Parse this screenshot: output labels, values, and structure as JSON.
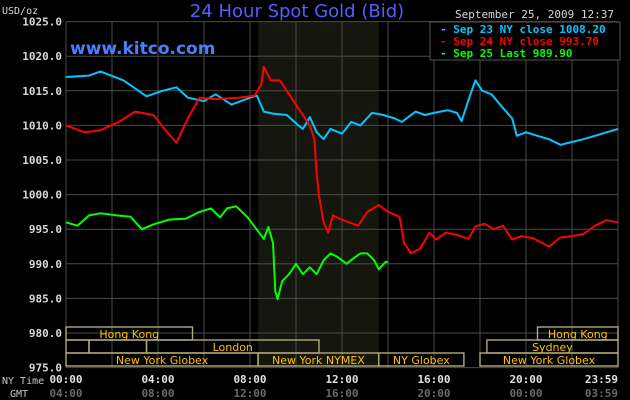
{
  "chart_data": {
    "type": "line",
    "title": "24 Hour Spot Gold (Bid)",
    "watermark": "www.kitco.com",
    "timestamp": "September 25, 2009 12:37",
    "ylabel": "USD/oz",
    "ylim": [
      975,
      1025
    ],
    "yticks": [
      "1025.0",
      "1020.0",
      "1015.0",
      "1010.0",
      "1005.0",
      "1000.0",
      "995.0",
      "990.0",
      "985.0",
      "980.0",
      "975.0"
    ],
    "xlim_hours": [
      0,
      24
    ],
    "x_row_label": "NY Time",
    "x_ticks_ny": [
      "00:00",
      "04:00",
      "08:00",
      "12:00",
      "16:00",
      "20:00",
      "23:59"
    ],
    "gmt_row_label": "GMT",
    "x_ticks_gmt": [
      "04:00",
      "08:00",
      "12:00",
      "16:00",
      "20:00",
      "00:00",
      "03:59"
    ],
    "grid": true,
    "legend_placement": "top-right",
    "highlight_hours": [
      8.35,
      13.6
    ],
    "series": [
      {
        "name": "Sep 23 NY close 1008.20",
        "color": "#00c8ff",
        "points": [
          [
            0,
            1017
          ],
          [
            1,
            1017.2
          ],
          [
            1.5,
            1017.8
          ],
          [
            2.5,
            1016.5
          ],
          [
            3.5,
            1014.2
          ],
          [
            4.2,
            1015
          ],
          [
            4.8,
            1015.5
          ],
          [
            5.3,
            1014
          ],
          [
            6,
            1013.5
          ],
          [
            6.5,
            1014.5
          ],
          [
            7.2,
            1013
          ],
          [
            8,
            1014
          ],
          [
            8.3,
            1014.3
          ],
          [
            8.6,
            1012
          ],
          [
            9,
            1011.7
          ],
          [
            9.6,
            1011.5
          ],
          [
            10.1,
            1010
          ],
          [
            10.3,
            1009.5
          ],
          [
            10.6,
            1011.2
          ],
          [
            10.9,
            1009
          ],
          [
            11.2,
            1008
          ],
          [
            11.5,
            1009.5
          ],
          [
            12,
            1008.8
          ],
          [
            12.4,
            1010.5
          ],
          [
            12.8,
            1010
          ],
          [
            13.3,
            1011.8
          ],
          [
            13.8,
            1011.5
          ],
          [
            14.3,
            1011
          ],
          [
            14.6,
            1010.5
          ],
          [
            15.2,
            1012
          ],
          [
            15.6,
            1011.5
          ],
          [
            16,
            1011.8
          ],
          [
            16.6,
            1012.2
          ],
          [
            17,
            1011.8
          ],
          [
            17.2,
            1010.6
          ],
          [
            17.5,
            1013.7
          ],
          [
            17.8,
            1016.5
          ],
          [
            18.1,
            1015
          ],
          [
            18.5,
            1014.5
          ],
          [
            19,
            1012.5
          ],
          [
            19.4,
            1011
          ],
          [
            19.6,
            1008.5
          ],
          [
            20,
            1009
          ],
          [
            20.5,
            1008.5
          ],
          [
            21,
            1008
          ],
          [
            21.5,
            1007.2
          ],
          [
            22,
            1007.6
          ],
          [
            22.5,
            1008
          ],
          [
            23,
            1008.5
          ],
          [
            23.5,
            1009
          ],
          [
            24,
            1009.5
          ]
        ]
      },
      {
        "name": "Sep 24 NY close 993.70",
        "color": "#ff0000",
        "points": [
          [
            0,
            1010
          ],
          [
            0.8,
            1009
          ],
          [
            1.5,
            1009.3
          ],
          [
            2.3,
            1010.5
          ],
          [
            3,
            1012
          ],
          [
            3.8,
            1011.5
          ],
          [
            4.4,
            1009
          ],
          [
            4.8,
            1007.5
          ],
          [
            5.3,
            1011
          ],
          [
            5.8,
            1014
          ],
          [
            6.5,
            1013.8
          ],
          [
            7.5,
            1014
          ],
          [
            8.2,
            1014.3
          ],
          [
            8.5,
            1016
          ],
          [
            8.6,
            1018.5
          ],
          [
            8.9,
            1016.5
          ],
          [
            9.3,
            1016.5
          ],
          [
            9.7,
            1014.5
          ],
          [
            10.2,
            1012
          ],
          [
            10.6,
            1010
          ],
          [
            10.8,
            1008
          ],
          [
            10.9,
            1003
          ],
          [
            11,
            999.8
          ],
          [
            11.2,
            996
          ],
          [
            11.4,
            994.5
          ],
          [
            11.6,
            997
          ],
          [
            11.9,
            996.5
          ],
          [
            12.3,
            996
          ],
          [
            12.7,
            995.5
          ],
          [
            13.1,
            997.5
          ],
          [
            13.6,
            998.5
          ],
          [
            14,
            997.5
          ],
          [
            14.5,
            996.8
          ],
          [
            14.7,
            993
          ],
          [
            15,
            991.5
          ],
          [
            15.4,
            992.2
          ],
          [
            15.8,
            994.5
          ],
          [
            16.1,
            993.5
          ],
          [
            16.5,
            994.5
          ],
          [
            17,
            994.2
          ],
          [
            17.5,
            993.6
          ],
          [
            17.8,
            995.4
          ],
          [
            18.2,
            995.8
          ],
          [
            18.6,
            995
          ],
          [
            19,
            995.5
          ],
          [
            19.4,
            993.5
          ],
          [
            19.8,
            994
          ],
          [
            20.3,
            993.7
          ],
          [
            21,
            992.5
          ],
          [
            21.5,
            993.8
          ],
          [
            22,
            994
          ],
          [
            22.5,
            994.3
          ],
          [
            23,
            995.5
          ],
          [
            23.5,
            996.3
          ],
          [
            24,
            996
          ]
        ]
      },
      {
        "name": "Sep 25 Last 989.90",
        "color": "#00ff00",
        "points": [
          [
            0,
            996
          ],
          [
            0.5,
            995.5
          ],
          [
            1,
            997
          ],
          [
            1.5,
            997.3
          ],
          [
            2.2,
            997
          ],
          [
            2.8,
            996.8
          ],
          [
            3.3,
            995
          ],
          [
            3.8,
            995.7
          ],
          [
            4.5,
            996.4
          ],
          [
            5.2,
            996.5
          ],
          [
            5.8,
            997.5
          ],
          [
            6.3,
            998
          ],
          [
            6.7,
            996.7
          ],
          [
            7,
            998
          ],
          [
            7.4,
            998.3
          ],
          [
            7.9,
            996.7
          ],
          [
            8.1,
            995.8
          ],
          [
            8.4,
            994.5
          ],
          [
            8.6,
            993.6
          ],
          [
            8.8,
            995.3
          ],
          [
            9,
            993
          ],
          [
            9.1,
            986
          ],
          [
            9.2,
            984.9
          ],
          [
            9.4,
            987.5
          ],
          [
            9.7,
            988.5
          ],
          [
            10,
            990
          ],
          [
            10.3,
            988.5
          ],
          [
            10.6,
            989.5
          ],
          [
            10.9,
            988.5
          ],
          [
            11.2,
            990.5
          ],
          [
            11.5,
            991.5
          ],
          [
            11.8,
            991
          ],
          [
            12.2,
            990
          ],
          [
            12.5,
            990.8
          ],
          [
            12.8,
            991.5
          ],
          [
            13.1,
            991.5
          ],
          [
            13.4,
            990.5
          ],
          [
            13.6,
            989.2
          ],
          [
            13.9,
            990.3
          ],
          [
            14,
            990.2
          ]
        ]
      }
    ],
    "sessions": [
      {
        "row": 0,
        "spans": [
          {
            "label": "Hong Kong",
            "from": 0,
            "to": 5.5
          },
          {
            "label": "Hong Kong",
            "from": 20.5,
            "to": 24
          }
        ]
      },
      {
        "row": 1,
        "spans": [
          {
            "label": "",
            "from": 0,
            "to": 1
          },
          {
            "label": "",
            "from": 1,
            "to": 3.5
          },
          {
            "label": "London",
            "from": 3.5,
            "to": 11
          },
          {
            "label": "Sydney",
            "from": 18.3,
            "to": 24
          }
        ]
      },
      {
        "row": 2,
        "spans": [
          {
            "label": "New York Globex",
            "from": 0,
            "to": 8.35
          },
          {
            "label": "New York NYMEX",
            "from": 8.35,
            "to": 13.6
          },
          {
            "label": "NY Globex",
            "from": 13.6,
            "to": 17.3
          },
          {
            "label": "New York Globex",
            "from": 18,
            "to": 24
          }
        ]
      }
    ]
  }
}
